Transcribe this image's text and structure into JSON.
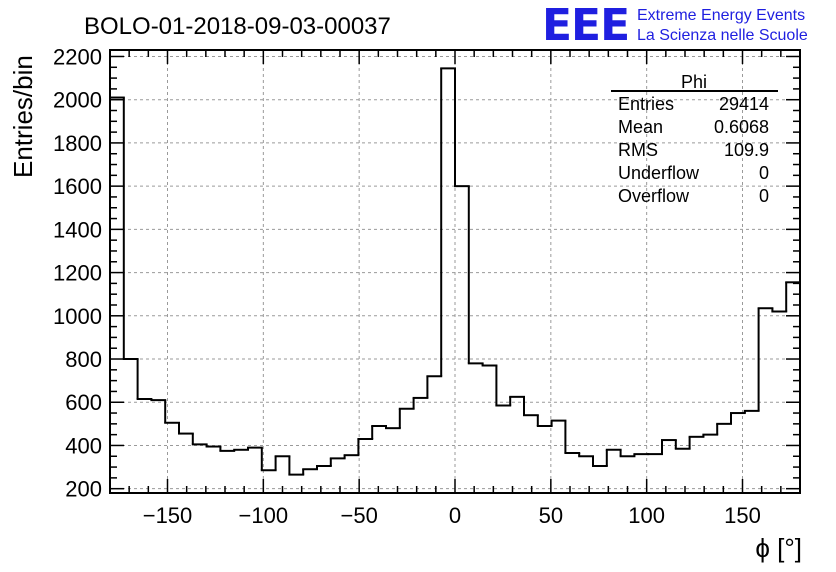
{
  "header": {
    "title": "BOLO-01-2018-09-03-00037",
    "logo": {
      "mark": "EEE",
      "line1": "Extreme Energy Events",
      "line2": "La Scienza nelle Scuole",
      "color": "#1f1fe0"
    }
  },
  "stats": {
    "name": "Phi",
    "rows": [
      {
        "label": "Entries",
        "value": "29414"
      },
      {
        "label": "Mean",
        "value": "0.6068"
      },
      {
        "label": "RMS",
        "value": "109.9"
      },
      {
        "label": "Underflow",
        "value": "0"
      },
      {
        "label": "Overflow",
        "value": "0"
      }
    ]
  },
  "chart_data": {
    "type": "histogram",
    "xlabel": "ϕ [°]",
    "ylabel": "Entries/bin",
    "xlim": [
      -180,
      180
    ],
    "ylim": [
      180,
      2230
    ],
    "grid": true,
    "bin_width": 7.2,
    "bin_start": -180,
    "values": [
      2010,
      800,
      615,
      610,
      505,
      455,
      405,
      395,
      375,
      380,
      390,
      285,
      350,
      265,
      290,
      305,
      340,
      355,
      430,
      490,
      480,
      570,
      620,
      720,
      2145,
      1600,
      780,
      770,
      585,
      625,
      540,
      490,
      515,
      365,
      350,
      305,
      380,
      350,
      360,
      360,
      425,
      385,
      440,
      450,
      500,
      550,
      560,
      1035,
      1020,
      1155
    ],
    "x_ticks": [
      -150,
      -100,
      -50,
      0,
      50,
      100,
      150
    ],
    "x_tick_labels": [
      "−150",
      "−100",
      "−50",
      "0",
      "50",
      "100",
      "150"
    ],
    "y_ticks": [
      200,
      400,
      600,
      800,
      1000,
      1200,
      1400,
      1600,
      1800,
      2000,
      2200
    ],
    "y_tick_labels": [
      "200",
      "400",
      "600",
      "800",
      "1000",
      "1200",
      "1400",
      "1600",
      "1800",
      "2000",
      "2200"
    ]
  }
}
